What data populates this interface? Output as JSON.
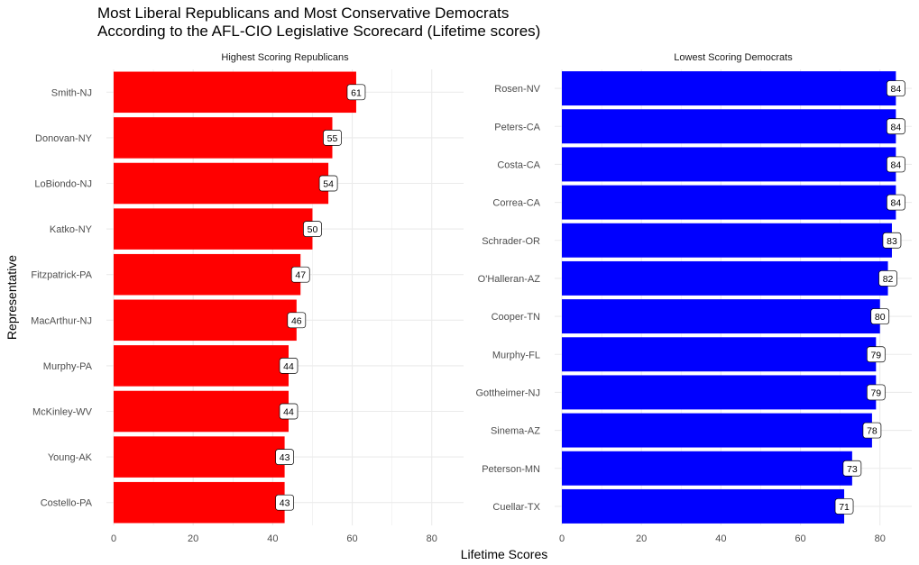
{
  "title_line1": "Most Liberal Republicans and Most Conservative Democrats",
  "title_line2": "According to the AFL-CIO Legislative Scorecard (Lifetime scores)",
  "xlabel": "Lifetime Scores",
  "ylabel": "Representative",
  "colors": {
    "republican": "#ff0000",
    "democrat": "#0000ff",
    "grid": "#ebebeb"
  },
  "chart_data": [
    {
      "type": "bar",
      "orientation": "horizontal",
      "facet_title": "Highest Scoring Republicans",
      "categories": [
        "Smith-NJ",
        "Donovan-NY",
        "LoBiondo-NJ",
        "Katko-NY",
        "Fitzpatrick-PA",
        "MacArthur-NJ",
        "Murphy-PA",
        "McKinley-WV",
        "Young-AK",
        "Costello-PA"
      ],
      "values": [
        61,
        55,
        54,
        50,
        47,
        46,
        44,
        44,
        43,
        43
      ],
      "xlim": [
        0,
        88
      ],
      "xticks": [
        0,
        20,
        40,
        60,
        80
      ],
      "color": "#ff0000",
      "grid": true
    },
    {
      "type": "bar",
      "orientation": "horizontal",
      "facet_title": "Lowest Scoring Democrats",
      "categories": [
        "Rosen-NV",
        "Peters-CA",
        "Costa-CA",
        "Correa-CA",
        "Schrader-OR",
        "O'Halleran-AZ",
        "Cooper-TN",
        "Murphy-FL",
        "Gottheimer-NJ",
        "Sinema-AZ",
        "Peterson-MN",
        "Cuellar-TX"
      ],
      "values": [
        84,
        84,
        84,
        84,
        83,
        82,
        80,
        79,
        79,
        78,
        73,
        71
      ],
      "xlim": [
        0,
        88
      ],
      "xticks": [
        0,
        20,
        40,
        60,
        80
      ],
      "color": "#0000ff",
      "grid": true
    }
  ]
}
